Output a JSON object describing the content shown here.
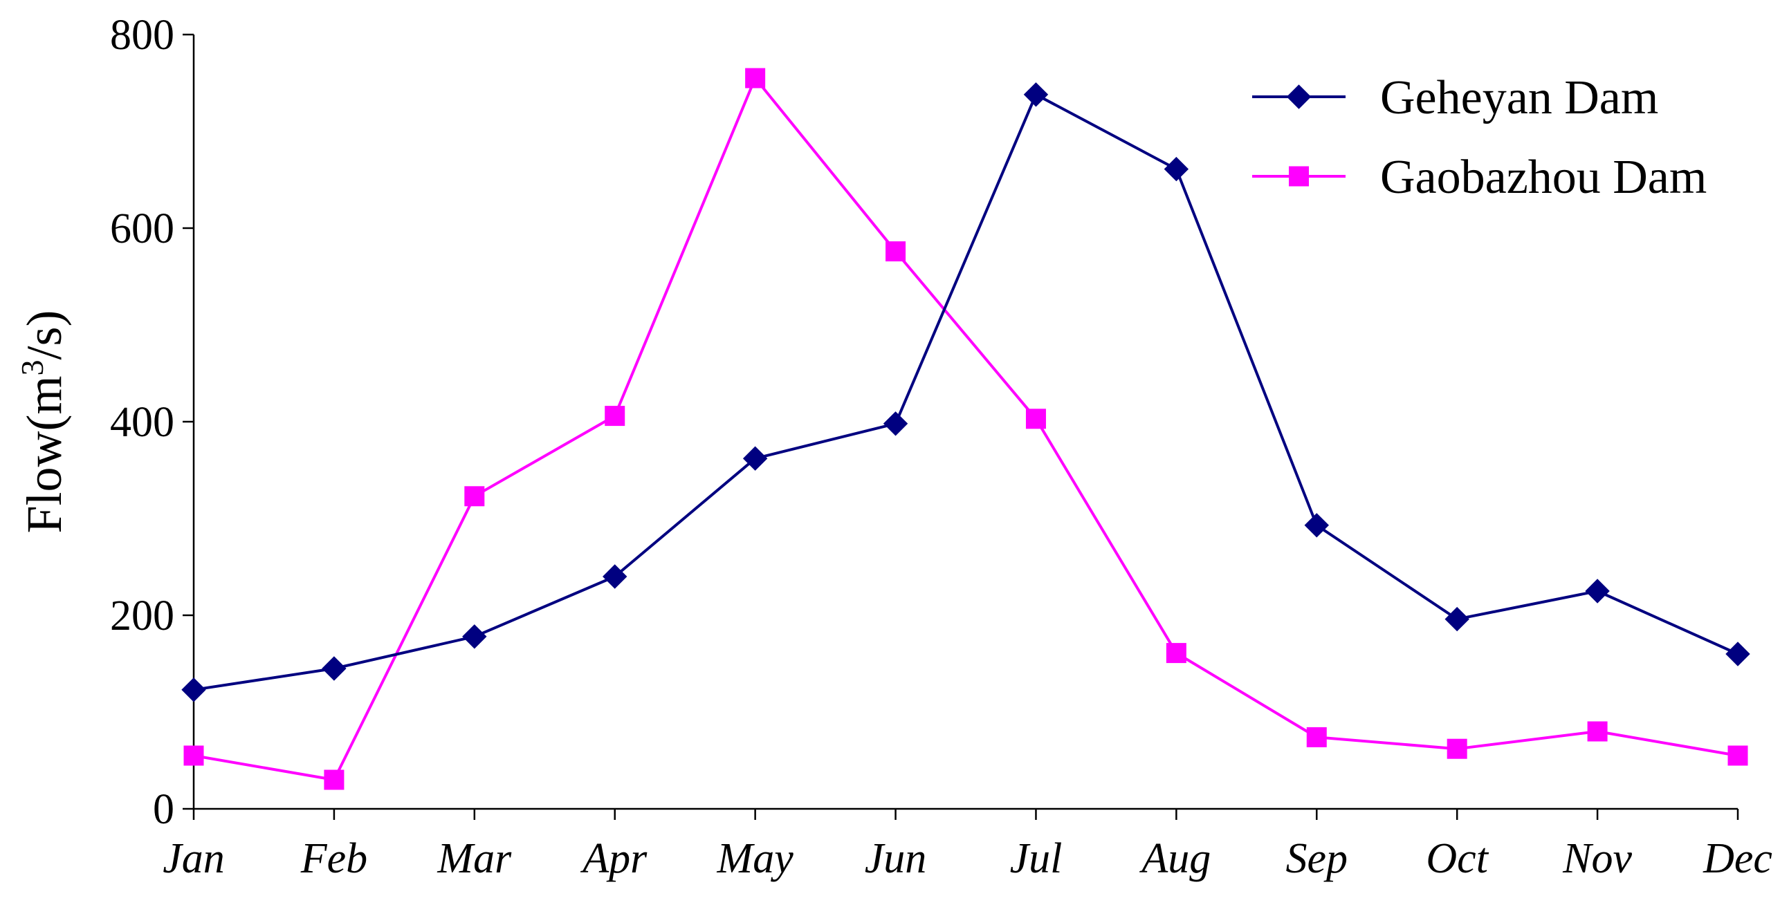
{
  "chart_data": {
    "type": "line",
    "title": "",
    "xlabel": "",
    "ylabel": "Flow(m",
    "ylabel_sup": "3",
    "ylabel_tail": "/s)",
    "ylim": [
      0,
      800
    ],
    "yticks": [
      0,
      200,
      400,
      600,
      800
    ],
    "grid": false,
    "legend_position": "top-right",
    "categories": [
      "Jan",
      "Feb",
      "Mar",
      "Apr",
      "May",
      "Jun",
      "Jul",
      "Aug",
      "Sep",
      "Oct",
      "Nov",
      "Dec"
    ],
    "series": [
      {
        "name": "Geheyan Dam",
        "color": "#000080",
        "marker": "diamond",
        "values": [
          123,
          145,
          178,
          240,
          362,
          398,
          738,
          661,
          293,
          196,
          225,
          160
        ]
      },
      {
        "name": "Gaobazhou Dam",
        "color": "#FF00FF",
        "marker": "square",
        "values": [
          55,
          30,
          323,
          406,
          755,
          576,
          403,
          161,
          74,
          62,
          80,
          55
        ]
      }
    ]
  }
}
